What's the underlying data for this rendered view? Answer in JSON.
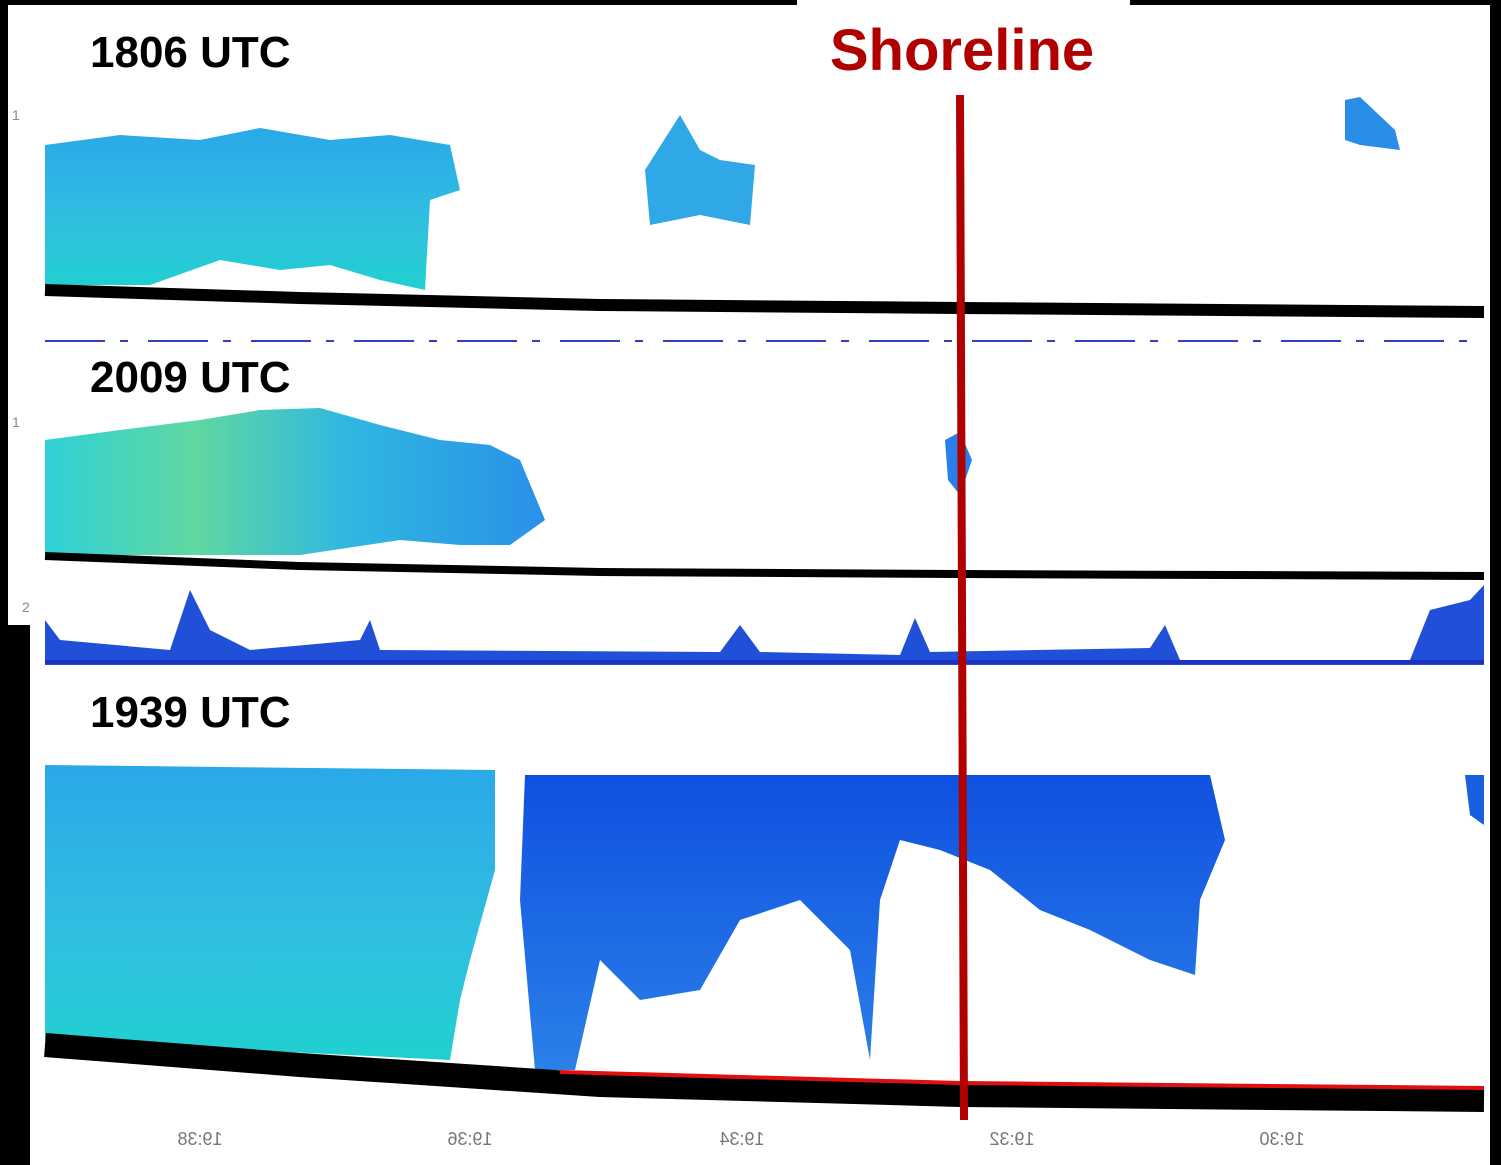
{
  "panels": [
    {
      "label": "1806 UTC"
    },
    {
      "label": "2009 UTC"
    },
    {
      "label": "1939 UTC"
    }
  ],
  "shoreline": "Shoreline",
  "y_ticks": [
    "1",
    "1",
    "2"
  ],
  "x_ticks": [
    "19:38",
    "19:36",
    "19:34",
    "19:32",
    "19:30"
  ]
}
